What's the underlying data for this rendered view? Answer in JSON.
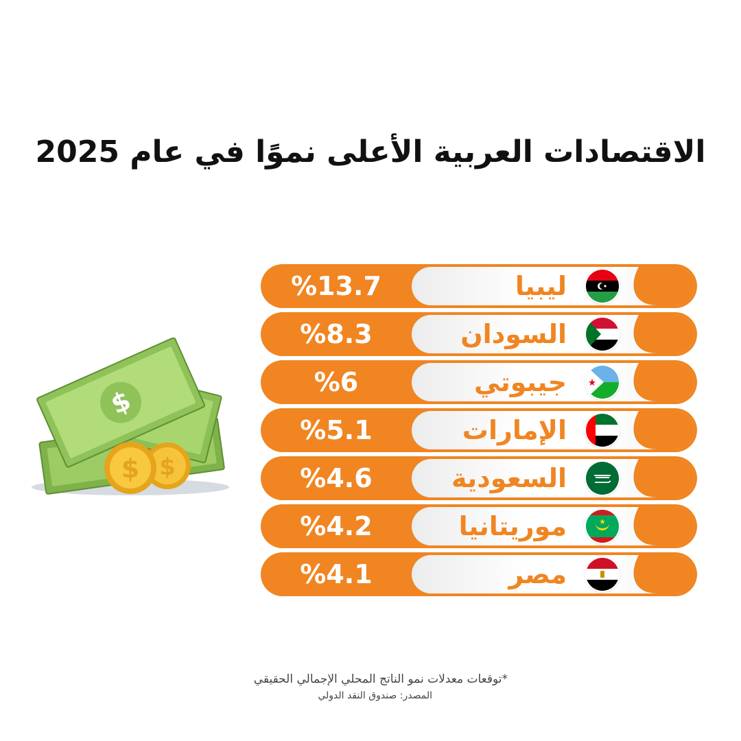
{
  "title": "الاقتصادات العربية الأعلى نموًا في عام 2025",
  "chart_data": {
    "type": "bar",
    "title": "الاقتصادات العربية الأعلى نموًا في عام 2025",
    "categories": [
      "ليبيا",
      "السودان",
      "جيبوتي",
      "الإمارات",
      "السعودية",
      "موريتانيا",
      "مصر"
    ],
    "values": [
      13.7,
      8.3,
      6,
      5.1,
      4.6,
      4.2,
      4.1
    ],
    "value_labels": [
      "%13.7",
      "%8.3",
      "%6",
      "%5.1",
      "%4.6",
      "%4.2",
      "%4.1"
    ],
    "flags": [
      "libya-flag-icon",
      "sudan-flag-icon",
      "djibouti-flag-icon",
      "uae-flag-icon",
      "saudi-flag-icon",
      "mauritania-flag-icon",
      "egypt-flag-icon"
    ]
  },
  "colors": {
    "accent": "#f08522",
    "title": "#111111",
    "note": "#444444"
  },
  "footnote": "*توقعات معدلات نمو الناتج المحلي الإجمالي الحقيقي",
  "source": "المصدر: صندوق النقد الدولي",
  "illustration": "money-stack-icon"
}
